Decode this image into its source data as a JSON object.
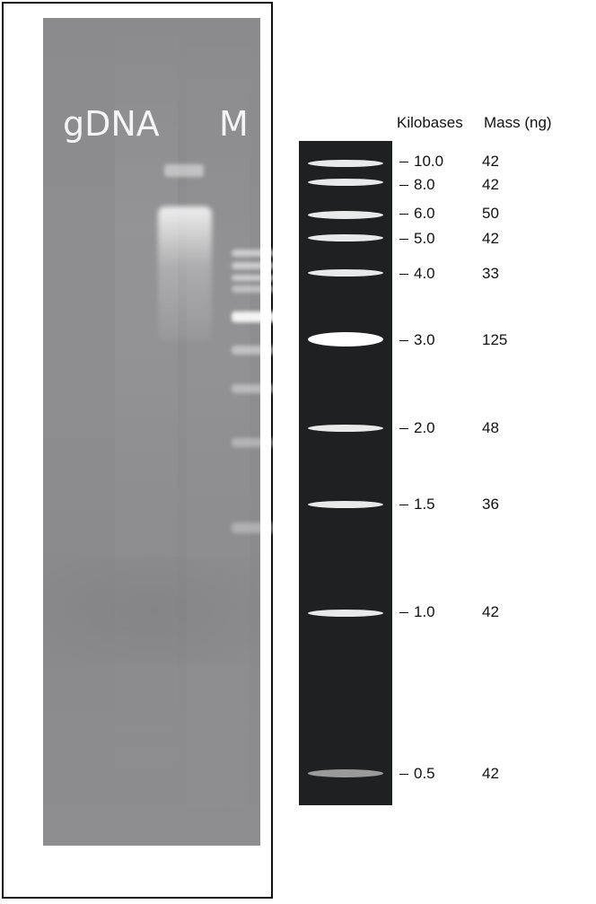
{
  "gel_photo": {
    "lane_labels": [
      "gDNA",
      "M"
    ]
  },
  "ladder": {
    "header_kilobases": "Kilobases",
    "header_mass": "Mass (ng)",
    "bands": [
      {
        "kb": "10.0",
        "mass": "42"
      },
      {
        "kb": "8.0",
        "mass": "42"
      },
      {
        "kb": "6.0",
        "mass": "50"
      },
      {
        "kb": "5.0",
        "mass": "42"
      },
      {
        "kb": "4.0",
        "mass": "33"
      },
      {
        "kb": "3.0",
        "mass": "125"
      },
      {
        "kb": "2.0",
        "mass": "48"
      },
      {
        "kb": "1.5",
        "mass": "36"
      },
      {
        "kb": "1.0",
        "mass": "42"
      },
      {
        "kb": "0.5",
        "mass": "42"
      }
    ]
  },
  "colors": {
    "gel_background": "#8c8c8e",
    "ladder_background": "#1f2022",
    "band": "#e9e9e9"
  }
}
